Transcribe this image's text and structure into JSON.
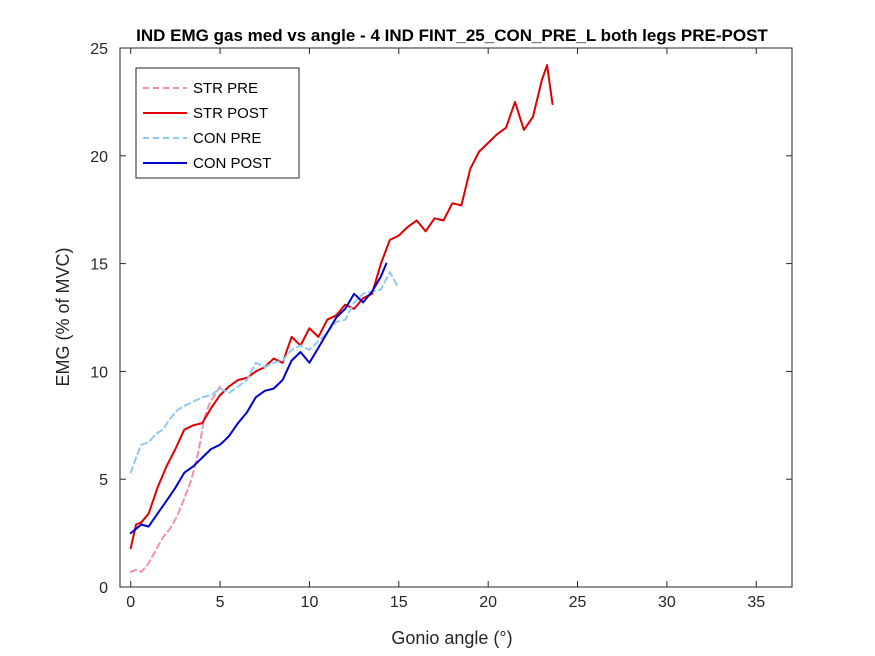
{
  "chart_data": {
    "type": "line",
    "title": "IND EMG gas med vs angle - 4 IND FINT_25_CON_PRE_L both legs PRE-POST",
    "xlabel": "Gonio angle (°)",
    "ylabel": "EMG (% of MVC)",
    "xlim": [
      -0.6,
      37
    ],
    "ylim": [
      0,
      25
    ],
    "xticks": [
      0,
      5,
      10,
      15,
      20,
      25,
      30,
      35
    ],
    "yticks": [
      0,
      5,
      10,
      15,
      20,
      25
    ],
    "grid": false,
    "legend_position": "top-left",
    "series": [
      {
        "name": "STR PRE",
        "color": "#f48fb1",
        "dash": true,
        "x": [
          0,
          0.3,
          0.6,
          1.0,
          1.4,
          1.8,
          2.2,
          2.6,
          3.0,
          3.4,
          3.8,
          4.1,
          4.4,
          4.7,
          5.0
        ],
        "y": [
          0.7,
          0.8,
          0.7,
          1.1,
          1.7,
          2.3,
          2.7,
          3.3,
          4.1,
          5.0,
          6.3,
          7.8,
          8.5,
          8.9,
          9.3
        ]
      },
      {
        "name": "STR POST",
        "color": "#e00000",
        "dash": false,
        "x": [
          0,
          0.3,
          0.6,
          1.0,
          1.5,
          2.0,
          2.5,
          3.0,
          3.5,
          4.0,
          4.5,
          5.0,
          5.5,
          6.0,
          6.5,
          7.0,
          7.5,
          8.0,
          8.5,
          9.0,
          9.5,
          10.0,
          10.5,
          11.0,
          11.5,
          12.0,
          12.5,
          13.0,
          13.5,
          14.0,
          14.5,
          15.0,
          15.5,
          16.0,
          16.5,
          17.0,
          17.5,
          18.0,
          18.5,
          19.0,
          19.5,
          20.0,
          20.5,
          21.0,
          21.5,
          22.0,
          22.5,
          23.0,
          23.3,
          23.6
        ],
        "y": [
          1.8,
          2.9,
          3.0,
          3.4,
          4.6,
          5.6,
          6.4,
          7.3,
          7.5,
          7.6,
          8.3,
          8.9,
          9.3,
          9.6,
          9.7,
          10.0,
          10.2,
          10.6,
          10.4,
          11.6,
          11.2,
          12.0,
          11.6,
          12.4,
          12.6,
          13.1,
          12.9,
          13.4,
          13.6,
          15.0,
          16.1,
          16.3,
          16.7,
          17.0,
          16.5,
          17.1,
          17.0,
          17.8,
          17.7,
          19.4,
          20.2,
          20.6,
          21.0,
          21.3,
          22.5,
          21.2,
          21.8,
          23.5,
          24.2,
          22.4
        ]
      },
      {
        "name": "CON PRE",
        "color": "#8dcaf2",
        "dash": true,
        "x": [
          0,
          0.3,
          0.6,
          1.0,
          1.4,
          1.8,
          2.2,
          2.6,
          3.0,
          3.5,
          4.0,
          4.5,
          5.0,
          5.5,
          6.0,
          6.5,
          7.0,
          7.5,
          8.0,
          8.5,
          9.0,
          9.5,
          10.0,
          10.5,
          11.0,
          11.5,
          12.0,
          12.5,
          13.0,
          13.5,
          14.0,
          14.5,
          14.9
        ],
        "y": [
          5.3,
          6.0,
          6.6,
          6.7,
          7.1,
          7.3,
          7.8,
          8.2,
          8.4,
          8.6,
          8.8,
          8.9,
          9.2,
          9.0,
          9.3,
          9.6,
          10.4,
          10.2,
          10.4,
          10.5,
          11.0,
          11.2,
          11.0,
          11.4,
          11.8,
          12.3,
          12.4,
          13.2,
          13.6,
          13.7,
          13.8,
          14.6,
          14.0
        ]
      },
      {
        "name": "CON POST",
        "color": "#0000d0",
        "dash": false,
        "x": [
          0,
          0.3,
          0.6,
          1.0,
          1.5,
          2.0,
          2.5,
          3.0,
          3.5,
          4.0,
          4.5,
          5.0,
          5.5,
          6.0,
          6.5,
          7.0,
          7.5,
          8.0,
          8.5,
          9.0,
          9.5,
          10.0,
          10.5,
          11.0,
          11.5,
          12.0,
          12.5,
          13.0,
          13.5,
          14.0,
          14.3
        ],
        "y": [
          2.5,
          2.7,
          2.9,
          2.8,
          3.4,
          4.0,
          4.6,
          5.3,
          5.6,
          6.0,
          6.4,
          6.6,
          7.0,
          7.6,
          8.1,
          8.8,
          9.1,
          9.2,
          9.6,
          10.5,
          10.9,
          10.4,
          11.1,
          11.8,
          12.5,
          12.9,
          13.6,
          13.2,
          13.7,
          14.4,
          15.0
        ]
      }
    ]
  }
}
